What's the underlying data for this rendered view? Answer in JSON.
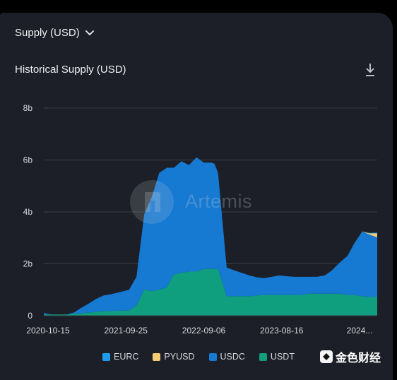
{
  "header": {
    "dropdown_label": "Supply (USD)",
    "chart_title": "Historical Supply (USD)"
  },
  "icons": {
    "dropdown": "chevron-down-icon",
    "download": "download-icon",
    "watermark": "artemis-logo-icon"
  },
  "watermark": {
    "text": "Artemis"
  },
  "corner_logo": {
    "text": "金色财经"
  },
  "colors": {
    "background": "#1c1f27",
    "grid": "#3a3e48",
    "axis_text": "#d5d8de",
    "EURC": "#1e9be8",
    "PYUSD": "#f6cc73",
    "USDC": "#1679d2",
    "USDT": "#0f9e7e"
  },
  "chart_data": {
    "type": "area",
    "stacked": true,
    "title": "Historical Supply (USD)",
    "xlabel": "",
    "ylabel": "",
    "ylim": [
      0,
      8
    ],
    "y_unit": "b",
    "y_ticks": [
      "0",
      "2b",
      "4b",
      "6b",
      "8b"
    ],
    "x_ticks": [
      "2020-10-15",
      "2021-09-25",
      "2022-09-06",
      "2023-08-16",
      "2024..."
    ],
    "x": [
      "2020-10-15",
      "2020-11-15",
      "2020-12-15",
      "2021-01-15",
      "2021-02-15",
      "2021-03-15",
      "2021-04-15",
      "2021-05-15",
      "2021-06-15",
      "2021-07-15",
      "2021-08-15",
      "2021-09-25",
      "2021-10-25",
      "2021-11-25",
      "2021-12-25",
      "2022-01-25",
      "2022-02-25",
      "2022-03-25",
      "2022-04-25",
      "2022-05-25",
      "2022-06-25",
      "2022-07-25",
      "2022-08-25",
      "2022-09-06",
      "2022-09-20",
      "2022-10-25",
      "2022-11-25",
      "2022-12-25",
      "2023-01-25",
      "2023-02-25",
      "2023-03-25",
      "2023-04-25",
      "2023-05-25",
      "2023-06-25",
      "2023-07-25",
      "2023-08-16",
      "2023-09-25",
      "2023-10-25",
      "2023-11-25",
      "2023-12-25",
      "2024-01-25",
      "2024-02-25",
      "2024-03-25",
      "2024-04-25",
      "2024-05-25",
      "2024-06-25"
    ],
    "series": [
      {
        "name": "USDT",
        "values": [
          0.05,
          0.05,
          0.05,
          0.05,
          0.08,
          0.1,
          0.12,
          0.15,
          0.18,
          0.18,
          0.2,
          0.2,
          0.4,
          1.0,
          0.95,
          1.0,
          1.1,
          1.6,
          1.65,
          1.7,
          1.7,
          1.8,
          1.8,
          1.8,
          1.8,
          0.75,
          0.75,
          0.75,
          0.75,
          0.78,
          0.8,
          0.8,
          0.8,
          0.8,
          0.8,
          0.8,
          0.85,
          0.85,
          0.85,
          0.85,
          0.85,
          0.8,
          0.8,
          0.75,
          0.72,
          0.72
        ]
      },
      {
        "name": "USDC",
        "values": [
          0.05,
          0.0,
          0.0,
          0.0,
          0.05,
          0.2,
          0.35,
          0.5,
          0.6,
          0.65,
          0.7,
          0.8,
          1.1,
          2.9,
          3.6,
          4.5,
          4.6,
          4.1,
          4.3,
          4.1,
          4.4,
          4.1,
          4.1,
          4.05,
          3.7,
          1.1,
          1.0,
          0.9,
          0.8,
          0.7,
          0.65,
          0.7,
          0.75,
          0.72,
          0.7,
          0.7,
          0.65,
          0.65,
          0.7,
          0.9,
          1.2,
          1.5,
          2.0,
          2.5,
          2.4,
          2.3
        ]
      },
      {
        "name": "PYUSD",
        "values": [
          0,
          0,
          0,
          0,
          0,
          0,
          0,
          0,
          0,
          0,
          0,
          0,
          0,
          0,
          0,
          0,
          0,
          0,
          0,
          0,
          0,
          0,
          0,
          0,
          0,
          0,
          0,
          0,
          0,
          0,
          0,
          0,
          0,
          0,
          0,
          0,
          0,
          0,
          0,
          0,
          0,
          0,
          0,
          0,
          0.05,
          0.15
        ]
      },
      {
        "name": "EURC",
        "values": [
          0,
          0,
          0,
          0,
          0,
          0,
          0,
          0,
          0,
          0,
          0,
          0,
          0,
          0,
          0,
          0,
          0,
          0,
          0,
          0,
          0,
          0,
          0,
          0,
          0,
          0,
          0,
          0,
          0,
          0,
          0,
          0,
          0,
          0,
          0,
          0,
          0,
          0,
          0,
          0,
          0,
          0,
          0,
          0,
          0.02,
          0.03
        ]
      }
    ],
    "legend_order": [
      "EURC",
      "PYUSD",
      "USDC",
      "USDT"
    ],
    "legend_position": "bottom",
    "grid": true
  }
}
